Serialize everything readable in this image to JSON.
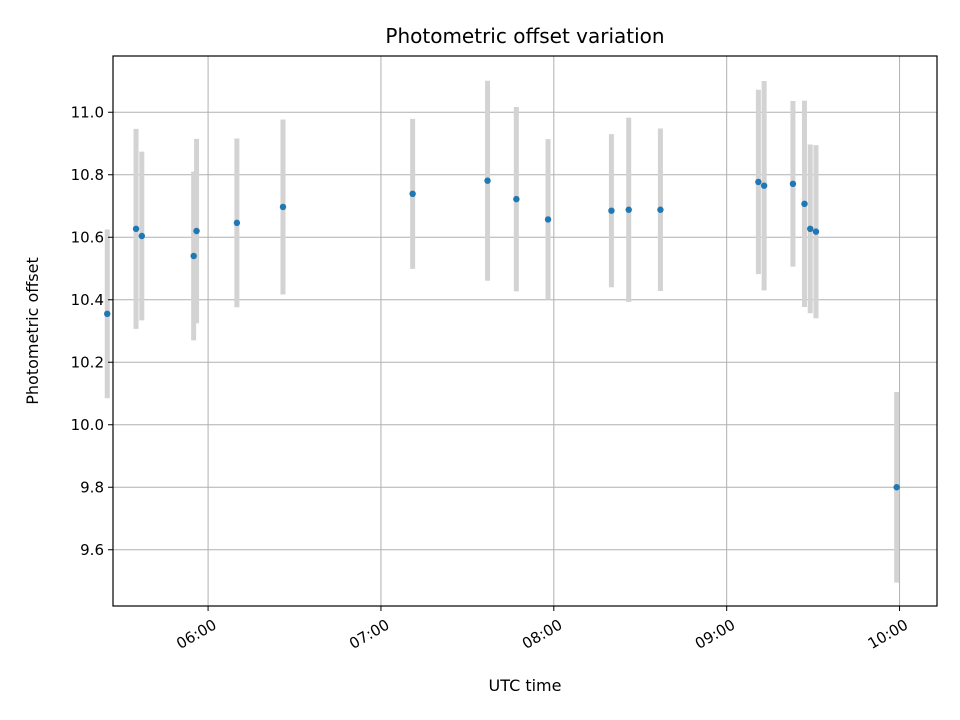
{
  "chart_data": {
    "type": "scatter",
    "title": "Photometric offset variation",
    "xlabel": "UTC time",
    "ylabel": "Photometric offset",
    "grid": true,
    "xlim": [
      "05:27",
      "10:13"
    ],
    "ylim": [
      9.42,
      11.18
    ],
    "x_ticks": [
      "06:00",
      "07:00",
      "08:00",
      "09:00",
      "10:00"
    ],
    "y_ticks": [
      9.6,
      9.8,
      10.0,
      10.2,
      10.4,
      10.6,
      10.8,
      11.0
    ],
    "colors": {
      "point": "#1f77b4",
      "errorbar": "#d3d3d3",
      "grid": "#b0b0b0"
    },
    "points": [
      {
        "x": "05:25",
        "y": 10.355,
        "yerr": 0.27
      },
      {
        "x": "05:35",
        "y": 10.627,
        "yerr": 0.32
      },
      {
        "x": "05:37",
        "y": 10.604,
        "yerr": 0.27
      },
      {
        "x": "05:55",
        "y": 10.54,
        "yerr": 0.27
      },
      {
        "x": "05:56",
        "y": 10.62,
        "yerr": 0.295
      },
      {
        "x": "06:10",
        "y": 10.646,
        "yerr": 0.27
      },
      {
        "x": "06:26",
        "y": 10.697,
        "yerr": 0.28
      },
      {
        "x": "07:11",
        "y": 10.739,
        "yerr": 0.24
      },
      {
        "x": "07:37",
        "y": 10.781,
        "yerr": 0.32
      },
      {
        "x": "07:47",
        "y": 10.722,
        "yerr": 0.295
      },
      {
        "x": "07:58",
        "y": 10.657,
        "yerr": 0.257
      },
      {
        "x": "08:20",
        "y": 10.685,
        "yerr": 0.245
      },
      {
        "x": "08:26",
        "y": 10.688,
        "yerr": 0.295
      },
      {
        "x": "08:37",
        "y": 10.688,
        "yerr": 0.26
      },
      {
        "x": "09:11",
        "y": 10.777,
        "yerr": 0.295
      },
      {
        "x": "09:13",
        "y": 10.765,
        "yerr": 0.335
      },
      {
        "x": "09:23",
        "y": 10.771,
        "yerr": 0.265
      },
      {
        "x": "09:27",
        "y": 10.707,
        "yerr": 0.33
      },
      {
        "x": "09:29",
        "y": 10.627,
        "yerr": 0.27
      },
      {
        "x": "09:31",
        "y": 10.618,
        "yerr": 0.277
      },
      {
        "x": "09:59",
        "y": 9.8,
        "yerr": 0.305
      }
    ]
  }
}
